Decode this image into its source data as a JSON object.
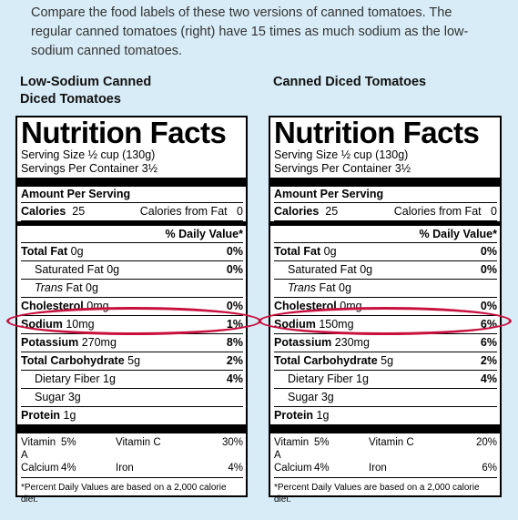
{
  "intro": "Compare the food labels of these two versions of canned tomatoes. The regular canned tomatoes (right) have 15 times as much sodium as the low-sodium canned tomatoes.",
  "colors": {
    "background": "#d8ecf7",
    "highlight_oval": "#c8103e"
  },
  "common": {
    "nf_title": "Nutrition Facts",
    "serving_size": "Serving Size  ½ cup (130g)",
    "servings_per_container": "Servings Per Container 3½",
    "amount_per_serving": "Amount Per Serving",
    "calories_label": "Calories",
    "calories_from_fat_label": "Calories from Fat",
    "daily_value_header": "% Daily Value*",
    "total_fat_label": "Total Fat",
    "saturated_fat_label": "Saturated Fat",
    "trans_fat_label": "Trans",
    "trans_fat_suffix": " Fat 0g",
    "cholesterol_label": "Cholesterol",
    "sodium_label": "Sodium",
    "potassium_label": "Potassium",
    "total_carb_label": "Total Carbohydrate",
    "fiber_label": "Dietary Fiber",
    "sugar_label": "Sugar",
    "protein_label": "Protein",
    "vitamin_a_label": "Vitamin A",
    "vitamin_c_label": "Vitamin C",
    "calcium_label": "Calcium",
    "iron_label": "Iron",
    "footnote": "*Percent Daily Values are based on a 2,000 calorie diet."
  },
  "labels": [
    {
      "title": "Low-Sodium Canned Diced Tomatoes",
      "calories": "25",
      "calories_from_fat": "0",
      "total_fat": "0g",
      "total_fat_dv": "0%",
      "saturated_fat": "0g",
      "saturated_fat_dv": "0%",
      "cholesterol": "0mg",
      "cholesterol_dv": "0%",
      "sodium": "10mg",
      "sodium_dv": "1%",
      "potassium": "270mg",
      "potassium_dv": "8%",
      "total_carb": "5g",
      "total_carb_dv": "2%",
      "fiber": "1g",
      "fiber_dv": "4%",
      "sugar": "3g",
      "protein": "1g",
      "vitamin_a": "5%",
      "vitamin_c": "30%",
      "calcium": "4%",
      "iron": "4%"
    },
    {
      "title": "Canned Diced Tomatoes",
      "calories": "25",
      "calories_from_fat": "0",
      "total_fat": "0g",
      "total_fat_dv": "0%",
      "saturated_fat": "0g",
      "saturated_fat_dv": "0%",
      "cholesterol": "0mg",
      "cholesterol_dv": "0%",
      "sodium": "150mg",
      "sodium_dv": "6%",
      "potassium": "230mg",
      "potassium_dv": "6%",
      "total_carb": "5g",
      "total_carb_dv": "2%",
      "fiber": "1g",
      "fiber_dv": "4%",
      "sugar": "3g",
      "protein": "1g",
      "vitamin_a": "5%",
      "vitamin_c": "20%",
      "calcium": "4%",
      "iron": "6%"
    }
  ]
}
